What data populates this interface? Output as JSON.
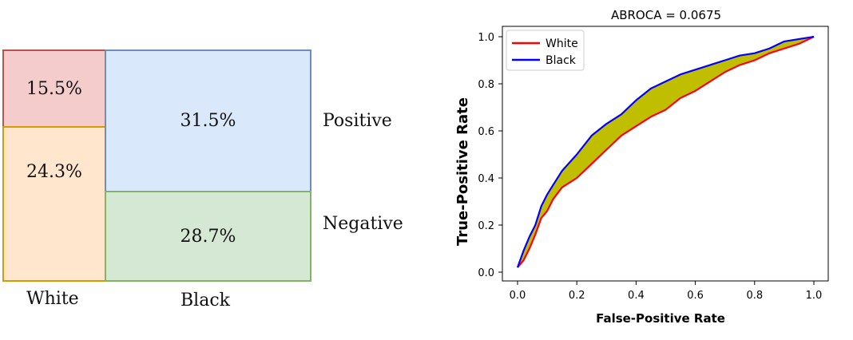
{
  "chart_data": [
    {
      "type": "mosaic",
      "columns": [
        "White",
        "Black"
      ],
      "rows": [
        "Positive",
        "Negative"
      ],
      "cells": [
        {
          "column": "White",
          "row": "Positive",
          "value": "15.5%",
          "color": "#f4cccc",
          "border": "#b85450"
        },
        {
          "column": "White",
          "row": "Negative",
          "value": "24.3%",
          "color": "#ffe6cc",
          "border": "#d79b00"
        },
        {
          "column": "Black",
          "row": "Positive",
          "value": "31.5%",
          "color": "#dae8fc",
          "border": "#6c8ebf"
        },
        {
          "column": "Black",
          "row": "Negative",
          "value": "28.7%",
          "color": "#d5e8d4",
          "border": "#82b366"
        }
      ]
    },
    {
      "type": "line",
      "title": "ABROCA = 0.0675",
      "xlabel": "False-Positive Rate",
      "ylabel": "True-Positive Rate",
      "xlim": [
        0.0,
        1.0
      ],
      "ylim": [
        0.0,
        1.0
      ],
      "xticks": [
        "0.0",
        "0.2",
        "0.4",
        "0.6",
        "0.8",
        "1.0"
      ],
      "yticks": [
        "0.0",
        "0.2",
        "0.4",
        "0.6",
        "0.8",
        "1.0"
      ],
      "legend_position": "top-left",
      "fill_color": "#bfbf00",
      "series": [
        {
          "name": "White",
          "color": "#ff0000",
          "x": [
            0.0,
            0.02,
            0.04,
            0.06,
            0.08,
            0.1,
            0.12,
            0.15,
            0.2,
            0.25,
            0.3,
            0.35,
            0.4,
            0.45,
            0.5,
            0.55,
            0.6,
            0.65,
            0.7,
            0.75,
            0.8,
            0.85,
            0.9,
            0.95,
            1.0
          ],
          "y": [
            0.02,
            0.05,
            0.1,
            0.16,
            0.23,
            0.26,
            0.31,
            0.36,
            0.4,
            0.46,
            0.52,
            0.58,
            0.62,
            0.66,
            0.69,
            0.74,
            0.77,
            0.81,
            0.85,
            0.88,
            0.9,
            0.93,
            0.95,
            0.97,
            1.0
          ]
        },
        {
          "name": "Black",
          "color": "#0000ff",
          "x": [
            0.0,
            0.02,
            0.04,
            0.06,
            0.08,
            0.1,
            0.12,
            0.15,
            0.2,
            0.25,
            0.3,
            0.35,
            0.4,
            0.45,
            0.5,
            0.55,
            0.6,
            0.65,
            0.7,
            0.75,
            0.8,
            0.85,
            0.9,
            0.95,
            1.0
          ],
          "y": [
            0.02,
            0.09,
            0.15,
            0.2,
            0.28,
            0.33,
            0.37,
            0.43,
            0.5,
            0.58,
            0.63,
            0.67,
            0.73,
            0.78,
            0.81,
            0.84,
            0.86,
            0.88,
            0.9,
            0.92,
            0.93,
            0.95,
            0.98,
            0.99,
            1.0
          ]
        }
      ]
    }
  ]
}
